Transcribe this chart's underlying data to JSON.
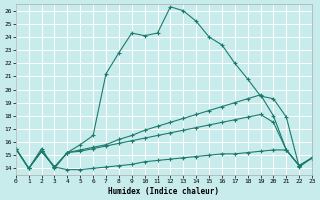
{
  "xlabel": "Humidex (Indice chaleur)",
  "bg_color": "#c8ecec",
  "line_color": "#1a7a6e",
  "grid_color": "#ffffff",
  "xlim": [
    0,
    23
  ],
  "ylim": [
    13.5,
    26.5
  ],
  "xticks": [
    0,
    1,
    2,
    3,
    4,
    5,
    6,
    7,
    8,
    9,
    10,
    11,
    12,
    13,
    14,
    15,
    16,
    17,
    18,
    19,
    20,
    21,
    22,
    23
  ],
  "yticks": [
    14,
    15,
    16,
    17,
    18,
    19,
    20,
    21,
    22,
    23,
    24,
    25,
    26
  ],
  "series": [
    {
      "x": [
        0,
        1,
        2,
        3,
        4,
        5,
        6,
        7,
        8,
        9,
        10,
        11,
        12,
        13,
        14,
        15,
        16,
        17,
        18,
        19,
        20,
        21,
        22,
        23
      ],
      "y": [
        15.5,
        14.0,
        15.5,
        14.0,
        15.2,
        15.8,
        16.5,
        21.2,
        22.8,
        24.3,
        24.1,
        24.3,
        26.3,
        26.0,
        25.2,
        24.0,
        23.4,
        22.0,
        20.8,
        19.5,
        19.3,
        17.9,
        14.1,
        14.8
      ],
      "marker": "+"
    },
    {
      "x": [
        0,
        1,
        2,
        3,
        4,
        5,
        6,
        7,
        8,
        9,
        10,
        11,
        12,
        13,
        14,
        15,
        16,
        17,
        18,
        19,
        20,
        21,
        22,
        23
      ],
      "y": [
        15.5,
        14.0,
        15.3,
        14.1,
        15.2,
        15.4,
        15.6,
        15.8,
        16.2,
        16.5,
        16.9,
        17.2,
        17.5,
        17.8,
        18.1,
        18.4,
        18.7,
        19.0,
        19.3,
        19.6,
        18.0,
        15.4,
        14.2,
        14.8
      ],
      "marker": "+"
    },
    {
      "x": [
        0,
        1,
        2,
        3,
        4,
        5,
        6,
        7,
        8,
        9,
        10,
        11,
        12,
        13,
        14,
        15,
        16,
        17,
        18,
        19,
        20,
        21,
        22,
        23
      ],
      "y": [
        15.5,
        14.0,
        15.3,
        14.1,
        15.2,
        15.3,
        15.5,
        15.7,
        15.9,
        16.1,
        16.3,
        16.5,
        16.7,
        16.9,
        17.1,
        17.3,
        17.5,
        17.7,
        17.9,
        18.1,
        17.5,
        15.4,
        14.2,
        14.8
      ],
      "marker": "+"
    },
    {
      "x": [
        0,
        1,
        2,
        3,
        4,
        5,
        6,
        7,
        8,
        9,
        10,
        11,
        12,
        13,
        14,
        15,
        16,
        17,
        18,
        19,
        20,
        21,
        22,
        23
      ],
      "y": [
        15.5,
        14.0,
        15.3,
        14.1,
        13.9,
        13.9,
        14.0,
        14.1,
        14.2,
        14.3,
        14.5,
        14.6,
        14.7,
        14.8,
        14.9,
        15.0,
        15.1,
        15.1,
        15.2,
        15.3,
        15.4,
        15.4,
        14.2,
        14.8
      ],
      "marker": "+"
    }
  ]
}
